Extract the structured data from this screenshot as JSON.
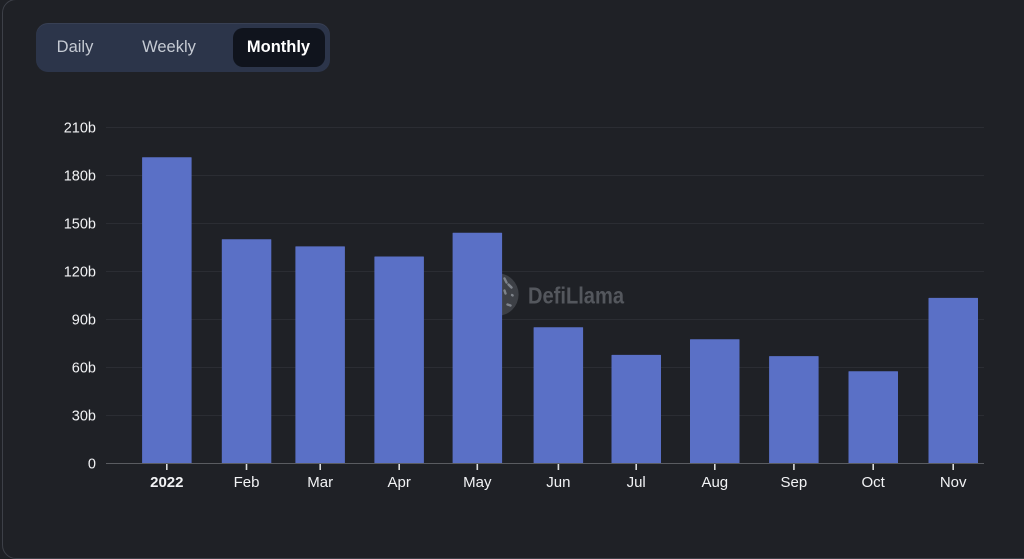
{
  "tabs": {
    "items": [
      {
        "label": "Daily",
        "active": false
      },
      {
        "label": "Weekly",
        "active": false
      },
      {
        "label": "Monthly",
        "active": true
      }
    ]
  },
  "watermark": {
    "label": "DefiLlama",
    "icon": "llama-logo"
  },
  "chart_data": {
    "type": "bar",
    "categories": [
      "2022",
      "Feb",
      "Mar",
      "Apr",
      "May",
      "Jun",
      "Jul",
      "Aug",
      "Sep",
      "Oct",
      "Nov"
    ],
    "values": [
      191.4,
      140.1,
      135.7,
      129.4,
      144.2,
      85.1,
      67.9,
      77.6,
      67.1,
      57.7,
      103.5
    ],
    "unit": "billions",
    "title": "",
    "xlabel": "",
    "ylabel": "",
    "ylim": [
      0,
      210
    ],
    "ytick_step": 30,
    "ytick_labels": [
      "0",
      "30b",
      "60b",
      "90b",
      "120b",
      "150b",
      "180b",
      "210b"
    ],
    "grid": "horizontal",
    "legend": "none",
    "bar_color": "#5a70c6",
    "background_color": "#1f2126",
    "gridline_color": "#2b2d33",
    "axis_line_color": "#5a5c61",
    "tick_color": "#d9dadc",
    "label_color": "#f2f3f5",
    "watermark_color": "#54575d"
  }
}
